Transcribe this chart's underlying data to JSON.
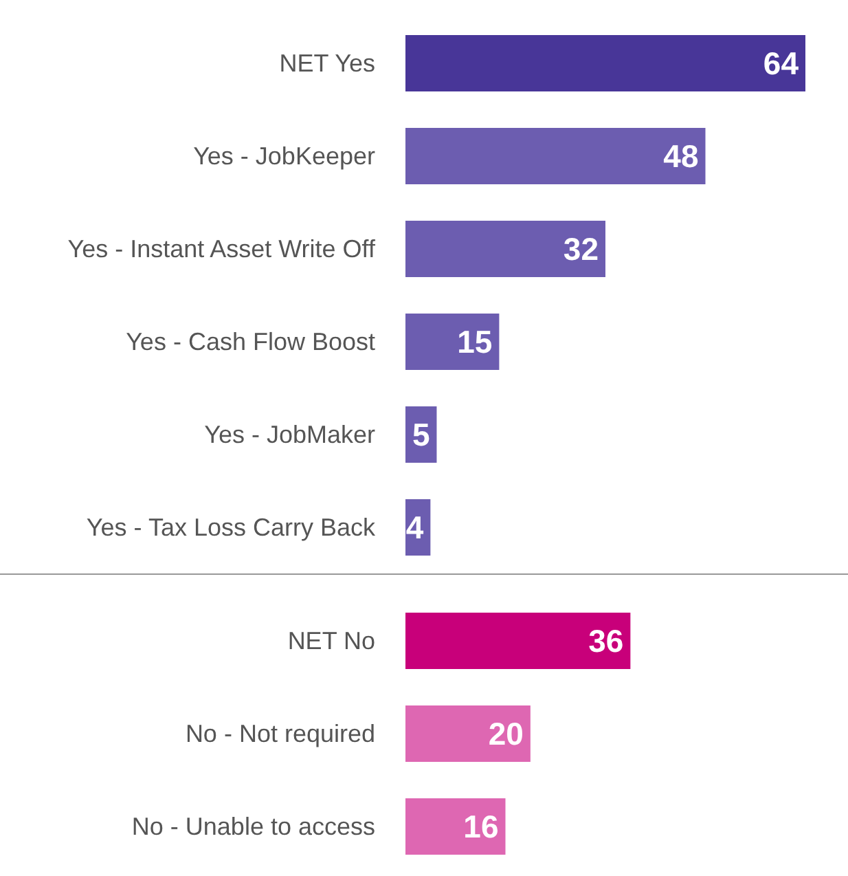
{
  "chart_data": [
    {
      "type": "bar",
      "orientation": "horizontal",
      "categories": [
        "NET Yes",
        "Yes - JobKeeper",
        "Yes - Instant Asset Write Off",
        "Yes - Cash Flow Boost",
        "Yes - JobMaker",
        "Yes - Tax Loss Carry Back"
      ],
      "values": [
        64,
        48,
        32,
        15,
        5,
        4
      ],
      "colors": [
        "#483698",
        "#6c5db0",
        "#6c5db0",
        "#6c5db0",
        "#6c5db0",
        "#6c5db0"
      ],
      "data_labels": true
    },
    {
      "type": "bar",
      "orientation": "horizontal",
      "categories": [
        "NET No",
        "No - Not required",
        "No - Unable to access"
      ],
      "values": [
        36,
        20,
        16
      ],
      "colors": [
        "#c8007a",
        "#de67b2",
        "#de67b2"
      ],
      "data_labels": true
    }
  ]
}
